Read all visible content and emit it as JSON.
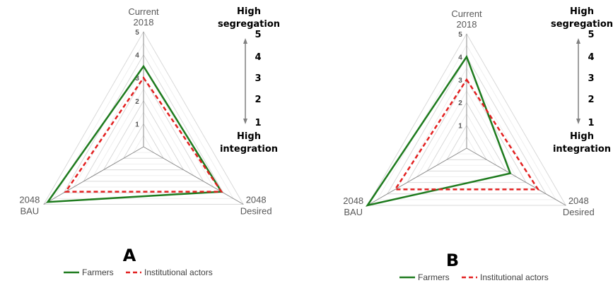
{
  "chart_data": [
    {
      "type": "radar",
      "panel_label": "A",
      "axes": [
        {
          "label_line1": "Current",
          "label_line2": "2018"
        },
        {
          "label_line1": "2048",
          "label_line2": "Desired"
        },
        {
          "label_line1": "2048",
          "label_line2": "BAU"
        }
      ],
      "rlim": [
        0,
        5
      ],
      "ticks": [
        "1",
        "2",
        "3",
        "4",
        "5"
      ],
      "series": [
        {
          "name": "Farmers",
          "values": [
            3.5,
            3.9,
            4.8
          ],
          "color": "#1e7b1e",
          "style": "solid"
        },
        {
          "name": "Institutional actors",
          "values": [
            3.0,
            3.9,
            3.9
          ],
          "color": "#e32020",
          "style": "dashed"
        }
      ],
      "scale": {
        "top_line1": "High",
        "top_line2": "segregation",
        "bottom_line1": "High",
        "bottom_line2": "integration",
        "numbers": [
          "5",
          "4",
          "3",
          "2",
          "1"
        ]
      },
      "legend": [
        "Farmers",
        "Institutional actors"
      ]
    },
    {
      "type": "radar",
      "panel_label": "B",
      "axes": [
        {
          "label_line1": "Current",
          "label_line2": "2018"
        },
        {
          "label_line1": "2048",
          "label_line2": "Desired"
        },
        {
          "label_line1": "2048",
          "label_line2": "BAU"
        }
      ],
      "rlim": [
        0,
        5
      ],
      "ticks": [
        "1",
        "2",
        "3",
        "4",
        "5"
      ],
      "series": [
        {
          "name": "Farmers",
          "values": [
            4.0,
            2.2,
            5.0
          ],
          "color": "#1e7b1e",
          "style": "solid"
        },
        {
          "name": "Institutional actors",
          "values": [
            3.0,
            3.6,
            3.6
          ],
          "color": "#e32020",
          "style": "dashed"
        }
      ],
      "scale": {
        "top_line1": "High",
        "top_line2": "segregation",
        "bottom_line1": "High",
        "bottom_line2": "integration",
        "numbers": [
          "5",
          "4",
          "3",
          "2",
          "1"
        ]
      },
      "legend": [
        "Farmers",
        "Institutional actors"
      ]
    }
  ]
}
